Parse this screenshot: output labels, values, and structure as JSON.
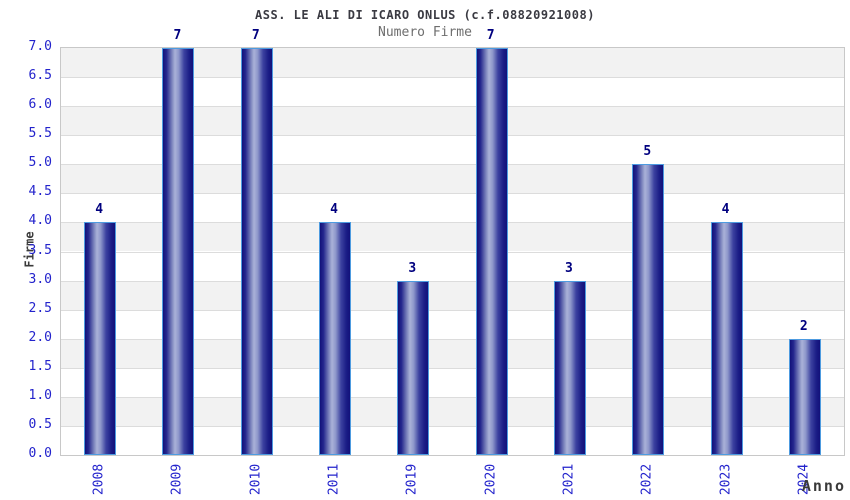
{
  "chart_data": {
    "type": "bar",
    "title": "ASS. LE ALI DI ICARO ONLUS (c.f.08820921008)",
    "subtitle": "Numero Firme",
    "xlabel": "Anno",
    "ylabel": "Firme",
    "categories": [
      "2008",
      "2009",
      "2010",
      "2011",
      "2019",
      "2020",
      "2021",
      "2022",
      "2023",
      "2024"
    ],
    "values": [
      4,
      7,
      7,
      4,
      3,
      7,
      3,
      5,
      4,
      2
    ],
    "ylim": [
      0,
      7
    ],
    "ytick_step": 0.5,
    "ytick_labels": [
      "0.0",
      "0.5",
      "1.0",
      "1.5",
      "2.0",
      "2.5",
      "3.0",
      "3.5",
      "4.0",
      "4.5",
      "5.0",
      "5.5",
      "6.0",
      "6.5",
      "7.0"
    ],
    "grid": "horizontal alternating bands with lines every 0.5",
    "legend": "none",
    "colors": {
      "title": "#3a3a42",
      "subtitle": "#6e6e6e",
      "tick_label": "#2323cc",
      "value_label": "#00007f",
      "axis_title": "#3a3a3a",
      "band_gray": "#f2f2f2",
      "band_white": "#ffffff",
      "grid_line": "#dcdcdc",
      "plot_border": "#c8c8c8",
      "bar_border": "#4d9be0",
      "bar_gradient_stops": [
        "#12117a",
        "#25288e",
        "#7c85bd",
        "#aab2d8",
        "#8f98cb",
        "#3c42a0",
        "#1b1d86",
        "#12117a"
      ],
      "bar_gradient_positions": [
        0,
        12,
        30,
        40,
        52,
        70,
        88,
        100
      ]
    }
  }
}
